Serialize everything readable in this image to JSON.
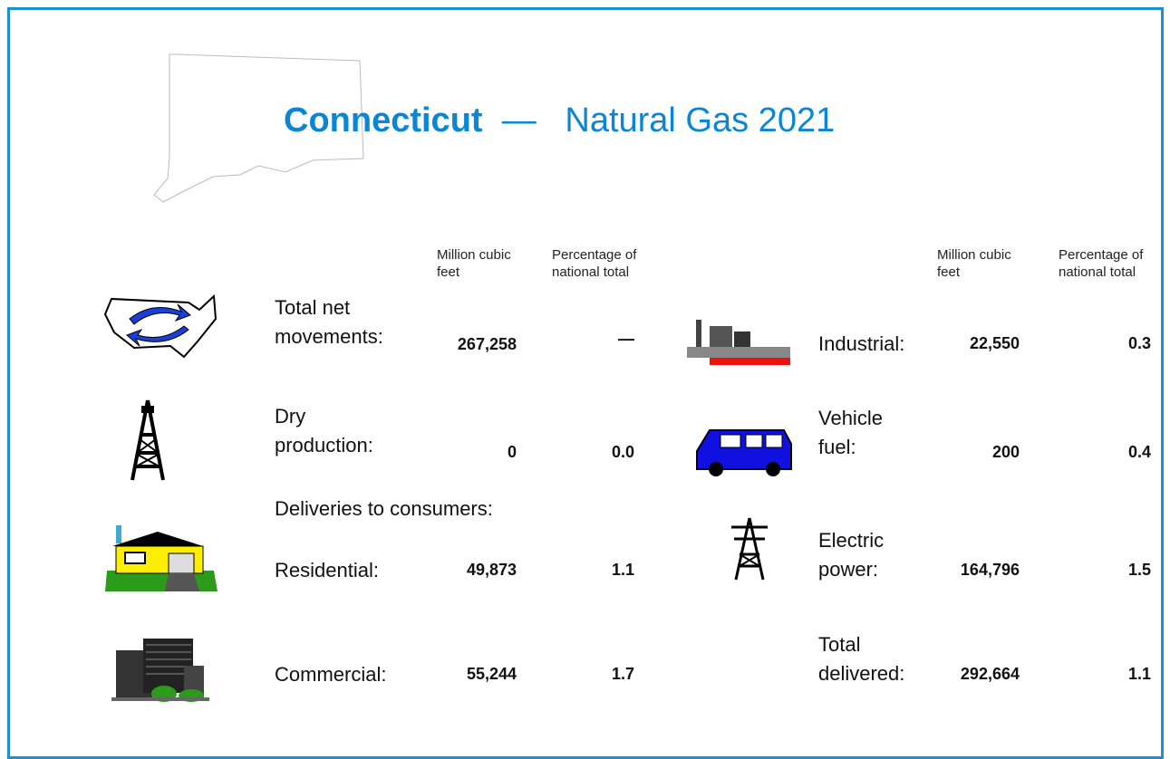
{
  "header": {
    "state": "Connecticut",
    "dash": "—",
    "subtitle": "Natural Gas 2021"
  },
  "column_headers": {
    "left": [
      "Million cubic feet",
      "Percentage of national total"
    ],
    "right": [
      "Million cubic feet",
      "Percentage of national total"
    ]
  },
  "left_rows": [
    {
      "label": "Total net movements:",
      "value": "267,258",
      "percent": "—"
    },
    {
      "label": "Dry production:",
      "value": "0",
      "percent": "0.0"
    }
  ],
  "deliveries_heading": "Deliveries to consumers:",
  "deliveries_left": [
    {
      "label": "Residential:",
      "value": "49,873",
      "percent": "1.1"
    },
    {
      "label": "Commercial:",
      "value": "55,244",
      "percent": "1.7"
    }
  ],
  "right_rows": [
    {
      "label": "Industrial:",
      "value": "22,550",
      "percent": "0.3"
    },
    {
      "label": "Vehicle fuel:",
      "value": "200",
      "percent": "0.4"
    },
    {
      "label": "Electric power:",
      "value": "164,796",
      "percent": "1.5"
    },
    {
      "label": "Total delivered:",
      "value": "292,664",
      "percent": "1.1"
    }
  ]
}
